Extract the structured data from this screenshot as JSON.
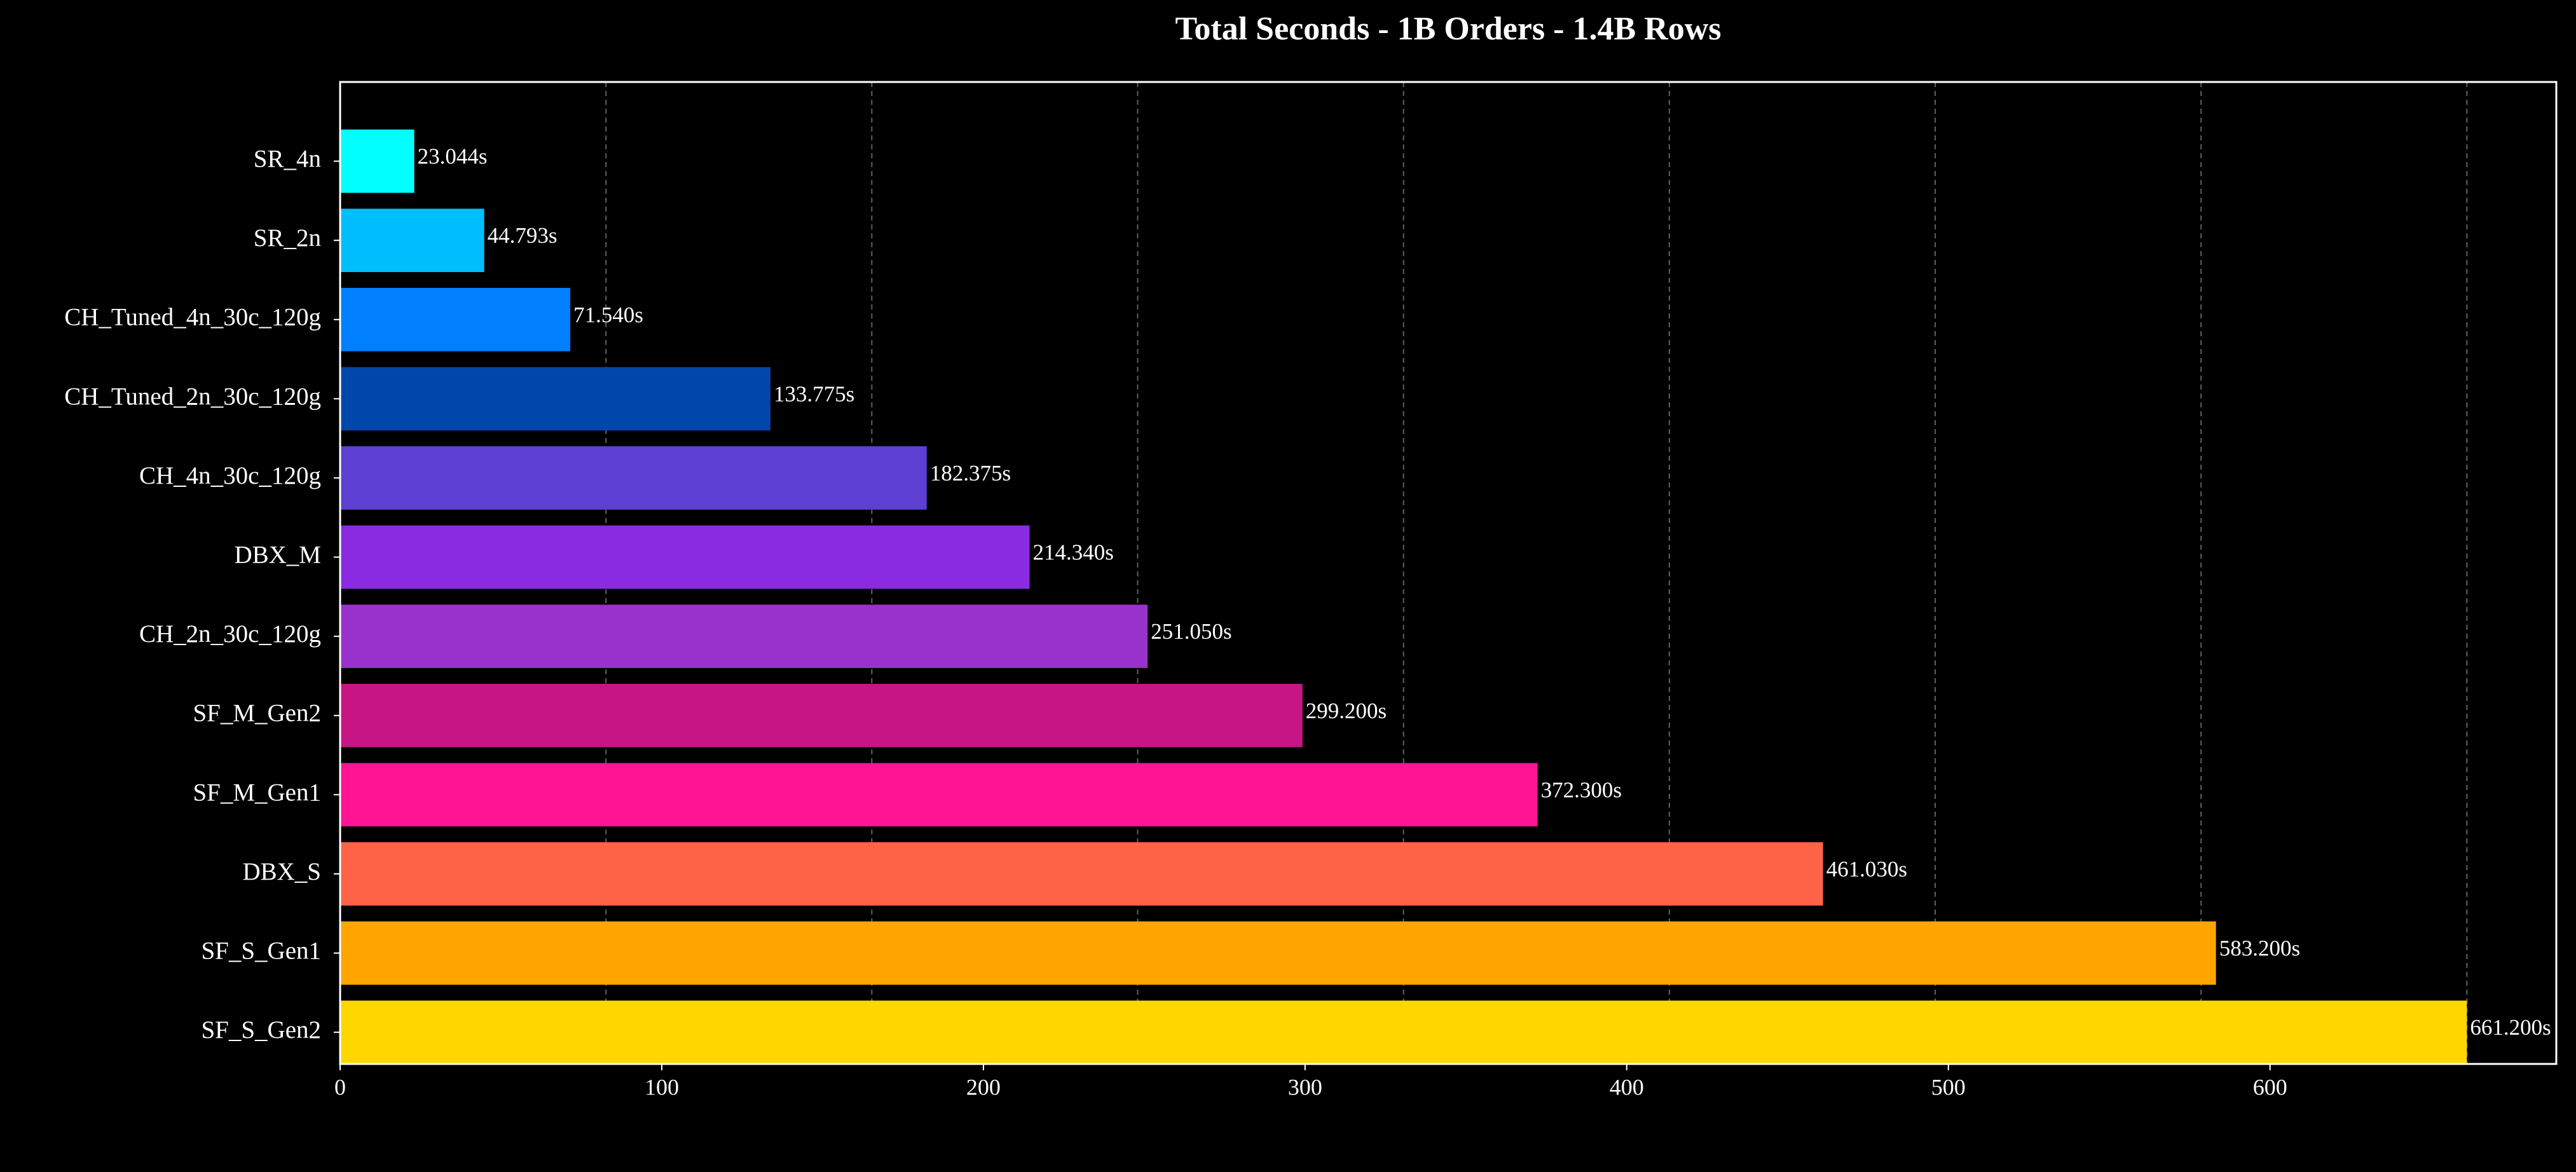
{
  "chart_data": {
    "type": "bar",
    "orientation": "horizontal",
    "title": "Total Seconds - 1B Orders - 1.4B Rows",
    "categories": [
      "SR_4n",
      "SR_2n",
      "CH_Tuned_4n_30c_120g",
      "CH_Tuned_2n_30c_120g",
      "CH_4n_30c_120g",
      "DBX_M",
      "CH_2n_30c_120g",
      "SF_M_Gen2",
      "SF_M_Gen1",
      "DBX_S",
      "SF_S_Gen1",
      "SF_S_Gen2"
    ],
    "values": [
      23.044,
      44.793,
      71.54,
      133.775,
      182.375,
      214.34,
      251.05,
      299.2,
      372.3,
      461.03,
      583.2,
      661.2
    ],
    "value_labels": [
      "23.044s",
      "44.793s",
      "71.540s",
      "133.775s",
      "182.375s",
      "214.340s",
      "251.050s",
      "299.200s",
      "372.300s",
      "461.030s",
      "583.200s",
      "661.200s"
    ],
    "colors": [
      "#00ffff",
      "#00bfff",
      "#007fff",
      "#0047ab",
      "#5d3fd3",
      "#8a2be2",
      "#9932cc",
      "#c71585",
      "#ff1493",
      "#ff6347",
      "#ffa500",
      "#ffd700"
    ],
    "xlim": [
      0,
      689
    ],
    "xticks": [
      0,
      100,
      200,
      300,
      400,
      500,
      600
    ],
    "grid_lines": [
      82.65,
      165.3,
      247.95,
      330.6,
      413.25,
      495.9,
      578.55,
      661.2
    ]
  }
}
